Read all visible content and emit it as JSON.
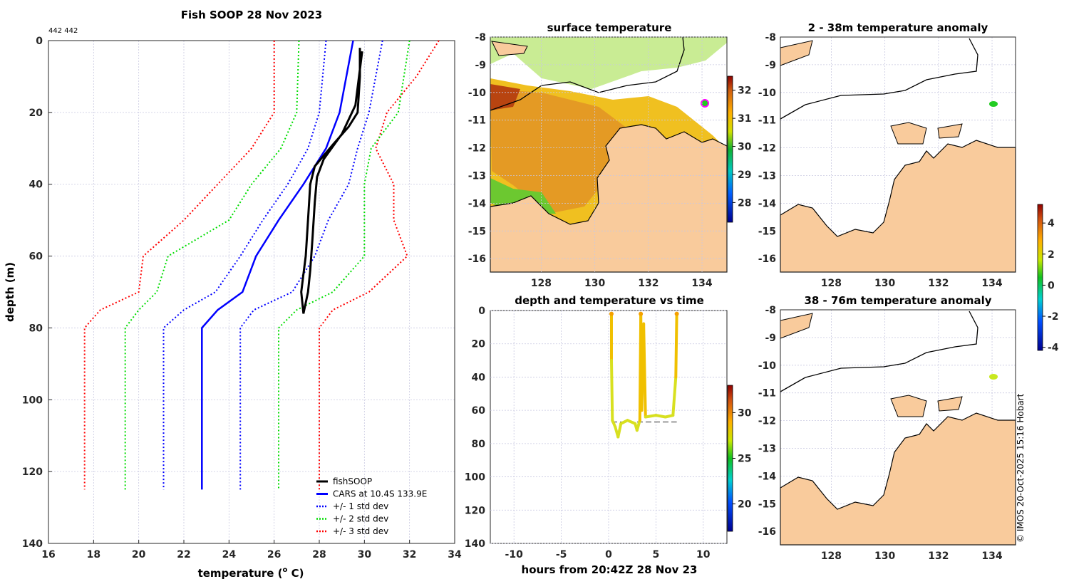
{
  "chart_data": [
    {
      "type": "line",
      "title": "Fish SOOP 28 Nov 2023",
      "corner_label": "442 442",
      "xlabel": "temperature (o C)",
      "xlabel_main": "temperature (",
      "xlabel_sup": "o",
      "xlabel_end": " C)",
      "ylabel": "depth (m)",
      "xlim": [
        16,
        34
      ],
      "ylim": [
        0,
        140
      ],
      "y_reversed": true,
      "grid": true,
      "xticks": [
        "16",
        "18",
        "20",
        "22",
        "24",
        "26",
        "28",
        "30",
        "32",
        "34"
      ],
      "yticks": [
        "0",
        "20",
        "40",
        "60",
        "80",
        "100",
        "120",
        "140"
      ],
      "legend_position": "bottom-right",
      "legend": [
        "fishSOOP",
        "CARS at 10.4S 133.9E",
        "+/- 1 std dev",
        "+/- 2 std dev",
        "+/- 3 std dev"
      ],
      "series": [
        {
          "name": "fishSOOP",
          "color": "#000000",
          "style": "solid",
          "points": [
            [
              29.8,
              2
            ],
            [
              29.8,
              10
            ],
            [
              29.7,
              20
            ],
            [
              29.3,
              24
            ],
            [
              28.6,
              29
            ],
            [
              27.8,
              35
            ],
            [
              27.6,
              40
            ],
            [
              27.5,
              50
            ],
            [
              27.4,
              60
            ],
            [
              27.3,
              65
            ],
            [
              27.2,
              70
            ],
            [
              27.3,
              76
            ],
            [
              27.5,
              70
            ],
            [
              27.6,
              64
            ],
            [
              27.7,
              55
            ],
            [
              27.8,
              45
            ],
            [
              27.9,
              38
            ],
            [
              28.2,
              33
            ],
            [
              29.0,
              26
            ],
            [
              29.6,
              18
            ],
            [
              29.9,
              3
            ]
          ]
        },
        {
          "name": "CARS at 10.4S 133.9E",
          "color": "#0000ff",
          "style": "solid",
          "points": [
            [
              29.5,
              0
            ],
            [
              29.2,
              10
            ],
            [
              28.9,
              20
            ],
            [
              28.3,
              30
            ],
            [
              27.3,
              40
            ],
            [
              26.2,
              50
            ],
            [
              25.2,
              60
            ],
            [
              24.6,
              70
            ],
            [
              23.5,
              75
            ],
            [
              22.8,
              80
            ],
            [
              22.8,
              125
            ]
          ]
        },
        {
          "name": "-1 std dev",
          "color": "#0000ff",
          "style": "dot",
          "points": [
            [
              28.3,
              0
            ],
            [
              28.0,
              20
            ],
            [
              27.5,
              30
            ],
            [
              26.6,
              40
            ],
            [
              25.5,
              50
            ],
            [
              24.5,
              60
            ],
            [
              23.4,
              70
            ],
            [
              22.0,
              75
            ],
            [
              21.1,
              80
            ],
            [
              21.1,
              125
            ]
          ]
        },
        {
          "name": "+1 std dev",
          "color": "#0000ff",
          "style": "dot",
          "points": [
            [
              30.8,
              0
            ],
            [
              30.5,
              10
            ],
            [
              30.2,
              20
            ],
            [
              29.7,
              30
            ],
            [
              29.3,
              40
            ],
            [
              28.4,
              50
            ],
            [
              27.8,
              60
            ],
            [
              26.8,
              70
            ],
            [
              25.1,
              75
            ],
            [
              24.5,
              80
            ],
            [
              24.5,
              125
            ]
          ]
        },
        {
          "name": "-2 std dev",
          "color": "#00dd00",
          "style": "dot",
          "points": [
            [
              27.1,
              0
            ],
            [
              27.0,
              20
            ],
            [
              26.3,
              30
            ],
            [
              25.0,
              40
            ],
            [
              24.0,
              50
            ],
            [
              21.3,
              60
            ],
            [
              20.8,
              70
            ],
            [
              20.0,
              75
            ],
            [
              19.4,
              80
            ],
            [
              19.4,
              125
            ]
          ]
        },
        {
          "name": "+2 std dev",
          "color": "#00dd00",
          "style": "dot",
          "points": [
            [
              32.0,
              0
            ],
            [
              31.5,
              20
            ],
            [
              30.3,
              30
            ],
            [
              30.0,
              40
            ],
            [
              30.0,
              50
            ],
            [
              30.0,
              60
            ],
            [
              28.6,
              70
            ],
            [
              27.0,
              75
            ],
            [
              26.2,
              80
            ],
            [
              26.2,
              125
            ]
          ]
        },
        {
          "name": "-3 std dev",
          "color": "#ff0000",
          "style": "dot",
          "points": [
            [
              26.0,
              0
            ],
            [
              26.0,
              20
            ],
            [
              25.0,
              30
            ],
            [
              23.5,
              40
            ],
            [
              22.0,
              50
            ],
            [
              20.2,
              60
            ],
            [
              20.0,
              70
            ],
            [
              18.3,
              75
            ],
            [
              17.6,
              80
            ],
            [
              17.6,
              125
            ]
          ]
        },
        {
          "name": "+3 std dev",
          "color": "#ff0000",
          "style": "dot",
          "points": [
            [
              33.3,
              0
            ],
            [
              32.3,
              10
            ],
            [
              31.0,
              20
            ],
            [
              30.5,
              30
            ],
            [
              31.3,
              40
            ],
            [
              31.3,
              50
            ],
            [
              31.9,
              60
            ],
            [
              30.2,
              70
            ],
            [
              28.6,
              75
            ],
            [
              28.0,
              80
            ],
            [
              28.0,
              125
            ]
          ]
        }
      ]
    },
    {
      "type": "scatter",
      "title": "depth and temperature vs time",
      "xlabel": "hours from 20:42Z 28 Nov 23",
      "xlim": [
        -12.5,
        12.5
      ],
      "ylim": [
        0,
        140
      ],
      "y_reversed": true,
      "xticks": [
        "-10",
        "-5",
        "0",
        "5",
        "10"
      ],
      "yticks": [
        "0",
        "20",
        "40",
        "60",
        "80",
        "100",
        "120",
        "140"
      ],
      "colorbar_ticks": [
        "20",
        "25",
        "30"
      ],
      "colorbar_range": [
        17,
        33
      ],
      "points": [
        [
          0.3,
          2
        ],
        [
          0.3,
          30
        ],
        [
          0.4,
          66
        ],
        [
          0.7,
          70
        ],
        [
          1.0,
          76
        ],
        [
          1.3,
          68
        ],
        [
          2.0,
          66
        ],
        [
          2.8,
          68
        ],
        [
          3.0,
          72
        ],
        [
          3.3,
          66
        ],
        [
          3.4,
          2
        ],
        [
          3.5,
          60
        ],
        [
          3.7,
          8
        ],
        [
          3.9,
          64
        ],
        [
          5.0,
          63
        ],
        [
          6.0,
          64
        ],
        [
          6.8,
          63
        ],
        [
          7.1,
          40
        ],
        [
          7.2,
          2
        ]
      ],
      "reference_depth": 67
    },
    {
      "type": "heatmap",
      "title": "surface temperature",
      "xticks": [
        "128",
        "130",
        "132",
        "134"
      ],
      "yticks": [
        "-8",
        "-9",
        "-10",
        "-11",
        "-12",
        "-13",
        "-14",
        "-15",
        "-16"
      ],
      "colorbar_ticks": [
        "28",
        "29",
        "30",
        "31",
        "32"
      ],
      "colorbar_range": [
        27.3,
        32.5
      ],
      "marker": {
        "lon": 133.9,
        "lat": -10.4
      }
    },
    {
      "type": "heatmap",
      "title": "2 - 38m temperature anomaly",
      "xticks": [
        "128",
        "130",
        "132",
        "134"
      ],
      "yticks": [
        "-8",
        "-9",
        "-10",
        "-11",
        "-12",
        "-13",
        "-14",
        "-15",
        "-16"
      ],
      "colorbar_ticks": [
        "4",
        "2",
        "0",
        "-2",
        "-4"
      ],
      "colorbar_range": [
        -4.2,
        5.2
      ],
      "marker": {
        "lon": 133.9,
        "lat": -10.4,
        "color": "#22cc22"
      }
    },
    {
      "type": "heatmap",
      "title": "38 - 76m temperature anomaly",
      "xticks": [
        "128",
        "130",
        "132",
        "134"
      ],
      "yticks": [
        "-8",
        "-9",
        "-10",
        "-11",
        "-12",
        "-13",
        "-14",
        "-15",
        "-16"
      ],
      "marker": {
        "lon": 133.9,
        "lat": -10.4,
        "color": "#c8e820"
      }
    }
  ],
  "credit": "© IMOS 20-Oct-2025 15:16 Hobart",
  "colors": {
    "land": "#f9cb9c",
    "sst_warm": "#e8a020",
    "sst_hot": "#c85010"
  }
}
